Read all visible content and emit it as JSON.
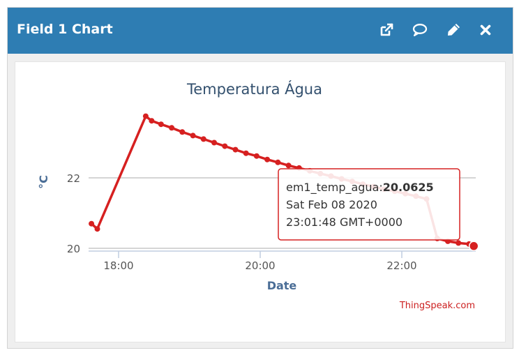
{
  "widget": {
    "title": "Field 1 Chart",
    "icons": {
      "open": "external-link-icon",
      "comment": "comment-icon",
      "edit": "pencil-icon",
      "close": "close-icon"
    },
    "header_color": "#2e7db3"
  },
  "chart_data": {
    "type": "line",
    "title": "Temperatura Água",
    "xlabel": "Date",
    "ylabel": "°C",
    "x_tick_labels": [
      "18:00",
      "20:00",
      "22:00"
    ],
    "y_tick_labels": [
      "20",
      "22"
    ],
    "ylim": [
      19.9,
      24.2
    ],
    "grid": "horizontal",
    "series_color": "#d62020",
    "series": [
      {
        "name": "em1_temp_agua",
        "points": [
          [
            "17:37",
            20.7
          ],
          [
            "17:42",
            20.55
          ],
          [
            "18:23",
            23.75
          ],
          [
            "18:28",
            23.62
          ],
          [
            "18:36",
            23.52
          ],
          [
            "18:45",
            23.42
          ],
          [
            "18:54",
            23.3
          ],
          [
            "19:03",
            23.2
          ],
          [
            "19:12",
            23.1
          ],
          [
            "19:21",
            23.0
          ],
          [
            "19:30",
            22.9
          ],
          [
            "19:39",
            22.8
          ],
          [
            "19:48",
            22.7
          ],
          [
            "19:57",
            22.62
          ],
          [
            "20:06",
            22.52
          ],
          [
            "20:15",
            22.44
          ],
          [
            "20:24",
            22.35
          ],
          [
            "20:33",
            22.28
          ],
          [
            "20:42",
            22.2
          ],
          [
            "20:51",
            22.12
          ],
          [
            "21:00",
            22.05
          ],
          [
            "21:09",
            21.97
          ],
          [
            "21:18",
            21.9
          ],
          [
            "21:27",
            21.82
          ],
          [
            "21:36",
            21.75
          ],
          [
            "21:45",
            21.68
          ],
          [
            "21:54",
            21.62
          ],
          [
            "22:03",
            21.55
          ],
          [
            "22:12",
            21.48
          ],
          [
            "22:21",
            21.4
          ],
          [
            "22:30",
            20.28
          ],
          [
            "22:39",
            20.2
          ],
          [
            "22:48",
            20.15
          ],
          [
            "22:57",
            20.12
          ],
          [
            "23:01",
            20.0625
          ]
        ]
      }
    ],
    "tooltip": {
      "label": "em1_temp_agua:",
      "value": "20.0625",
      "date": "Sat Feb 08 2020",
      "time": "23:01:48 GMT+0000"
    },
    "credit": "ThingSpeak.com"
  }
}
